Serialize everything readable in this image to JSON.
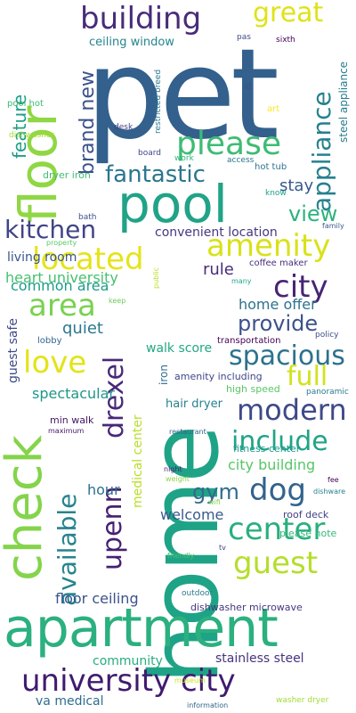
{
  "words": [
    {
      "text": "pet",
      "color": "#33608c"
    },
    {
      "text": "home",
      "color": "#1fa386"
    },
    {
      "text": "floor",
      "color": "#8fd744"
    },
    {
      "text": "check",
      "color": "#84d44b"
    },
    {
      "text": "pool",
      "color": "#20a386"
    },
    {
      "text": "apartment",
      "color": "#2bb07f"
    },
    {
      "text": "university city",
      "color": "#3f1b6f"
    },
    {
      "text": "building",
      "color": "#472c7a"
    },
    {
      "text": "great",
      "color": "#dfe318"
    },
    {
      "text": "please",
      "color": "#3dbc74"
    },
    {
      "text": "appliance",
      "color": "#26818e"
    },
    {
      "text": "fantastic",
      "color": "#2a768e"
    },
    {
      "text": "kitchen",
      "color": "#414487"
    },
    {
      "text": "amenity",
      "color": "#d8e219"
    },
    {
      "text": "view",
      "color": "#2db27d"
    },
    {
      "text": "located",
      "color": "#e5e419"
    },
    {
      "text": "city",
      "color": "#482475"
    },
    {
      "text": "area",
      "color": "#7ad151"
    },
    {
      "text": "love",
      "color": "#e2e418"
    },
    {
      "text": "provide",
      "color": "#3b528b"
    },
    {
      "text": "spacious",
      "color": "#2d718e"
    },
    {
      "text": "full",
      "color": "#d2e21b"
    },
    {
      "text": "modern",
      "color": "#3e4989"
    },
    {
      "text": "drexel",
      "color": "#482878"
    },
    {
      "text": "upenn",
      "color": "#481f70"
    },
    {
      "text": "include",
      "color": "#20a486"
    },
    {
      "text": "dog",
      "color": "#33638d"
    },
    {
      "text": "available",
      "color": "#25848e"
    },
    {
      "text": "center",
      "color": "#29af7f"
    },
    {
      "text": "guest",
      "color": "#b5de2b"
    },
    {
      "text": "gym",
      "color": "#2f6c8e"
    },
    {
      "text": "brand new",
      "color": "#3b528b"
    },
    {
      "text": "feature",
      "color": "#1f9e89"
    },
    {
      "text": "stay",
      "color": "#38598c"
    },
    {
      "text": "convenient location",
      "color": "#453781"
    },
    {
      "text": "living room",
      "color": "#39558c"
    },
    {
      "text": "rule",
      "color": "#472d7b"
    },
    {
      "text": "heart university",
      "color": "#46c06f"
    },
    {
      "text": "common area",
      "color": "#1e9c89"
    },
    {
      "text": "home offer",
      "color": "#2c728e"
    },
    {
      "text": "quiet",
      "color": "#2a788e"
    },
    {
      "text": "guest safe",
      "color": "#3e4a89"
    },
    {
      "text": "walk score",
      "color": "#22a884"
    },
    {
      "text": "spectacular",
      "color": "#1f968b"
    },
    {
      "text": "hair dryer",
      "color": "#25838e"
    },
    {
      "text": "medical center",
      "color": "#b8de29"
    },
    {
      "text": "city building",
      "color": "#56c667"
    },
    {
      "text": "welcome",
      "color": "#38598c"
    },
    {
      "text": "hour",
      "color": "#2d708e"
    },
    {
      "text": "floor ceiling",
      "color": "#3b528b"
    },
    {
      "text": "community",
      "color": "#27ad81"
    },
    {
      "text": "stainless steel",
      "color": "#46337e"
    },
    {
      "text": "va medical",
      "color": "#2e6d8e"
    },
    {
      "text": "dishwasher microwave",
      "color": "#453781"
    },
    {
      "text": "roof deck",
      "color": "#424186"
    },
    {
      "text": "please note",
      "color": "#35b779"
    },
    {
      "text": "ceiling window",
      "color": "#24868e"
    },
    {
      "text": "steel appliance",
      "color": "#287c8e"
    },
    {
      "text": "iron",
      "color": "#2e6e8e"
    },
    {
      "text": "fitness center",
      "color": "#1f9a8a"
    },
    {
      "text": "high speed",
      "color": "#58c765"
    },
    {
      "text": "amenity including",
      "color": "#3f4788"
    },
    {
      "text": "min walk",
      "color": "#481668"
    },
    {
      "text": "coffee maker",
      "color": "#46307e"
    },
    {
      "text": "transportation",
      "color": "#440154"
    },
    {
      "text": "hot tub",
      "color": "#2c738e"
    },
    {
      "text": "dryer iron",
      "color": "#40bd72"
    },
    {
      "text": "lobby",
      "color": "#31688e"
    },
    {
      "text": "restricted breed",
      "color": "#2a768e"
    },
    {
      "text": "pool hot",
      "color": "#3ebc73"
    },
    {
      "text": "dishwasher",
      "color": "#a8db34"
    },
    {
      "text": "desk",
      "color": "#424086"
    },
    {
      "text": "board",
      "color": "#404588"
    },
    {
      "text": "work",
      "color": "#31b57b"
    },
    {
      "text": "bath",
      "color": "#3c508b"
    },
    {
      "text": "access",
      "color": "#2b748e"
    },
    {
      "text": "know",
      "color": "#1fa188"
    },
    {
      "text": "family",
      "color": "#38598c"
    },
    {
      "text": "property",
      "color": "#5ec962"
    },
    {
      "text": "public",
      "color": "#bade28"
    },
    {
      "text": "keep",
      "color": "#6ccd5a"
    },
    {
      "text": "many",
      "color": "#22a785"
    },
    {
      "text": "policy",
      "color": "#3d4e8a"
    },
    {
      "text": "panoramic",
      "color": "#29798e"
    },
    {
      "text": "restaurant",
      "color": "#33638d"
    },
    {
      "text": "night",
      "color": "#482173"
    },
    {
      "text": "weight",
      "color": "#8bd646"
    },
    {
      "text": "wifi",
      "color": "#7fd34e"
    },
    {
      "text": "fee",
      "color": "#440154"
    },
    {
      "text": "dishware",
      "color": "#26828e"
    },
    {
      "text": "friendly",
      "color": "#4ac16d"
    },
    {
      "text": "tv",
      "color": "#433e85"
    },
    {
      "text": "outdoor",
      "color": "#297b8e"
    },
    {
      "text": "museum",
      "color": "#d0e11c"
    },
    {
      "text": "maximum",
      "color": "#481769"
    },
    {
      "text": "information",
      "color": "#33638d"
    },
    {
      "text": "washer dryer",
      "color": "#a2da37"
    },
    {
      "text": "pas",
      "color": "#3e4c8a"
    },
    {
      "text": "art",
      "color": "#fde725"
    },
    {
      "text": "sixth",
      "color": "#440154"
    },
    {
      "text": "id",
      "color": "#3c4f8a"
    }
  ]
}
